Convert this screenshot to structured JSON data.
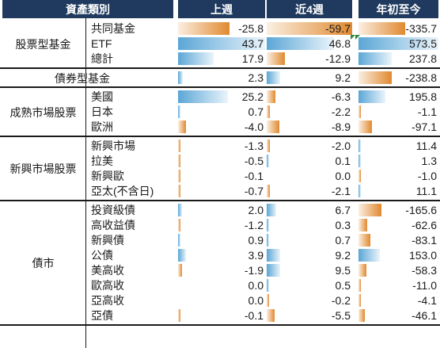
{
  "chart_data": {
    "type": "table",
    "headers": [
      "資產類別",
      "上週",
      "近4週",
      "年初至今"
    ],
    "groups": [
      {
        "category": "股票型基金",
        "rows": [
          {
            "label": "共同基金",
            "values": [
              -25.8,
              -59.7,
              -335.7
            ]
          },
          {
            "label": "ETF",
            "values": [
              43.7,
              46.8,
              573.5
            ]
          },
          {
            "label": "總計",
            "values": [
              17.9,
              -12.9,
              237.8
            ]
          }
        ]
      },
      {
        "category": "債券型基金",
        "rows": [
          {
            "label": "",
            "values": [
              2.3,
              9.2,
              -238.8
            ]
          }
        ]
      },
      {
        "category": "成熟市場股票",
        "rows": [
          {
            "label": "美國",
            "values": [
              25.2,
              -6.3,
              195.8
            ]
          },
          {
            "label": "日本",
            "values": [
              0.7,
              -2.2,
              -1.1
            ]
          },
          {
            "label": "歐洲",
            "values": [
              -4.0,
              -8.9,
              -97.1
            ]
          }
        ]
      },
      {
        "category": "新興市場股票",
        "rows": [
          {
            "label": "新興市場",
            "values": [
              -1.3,
              -2.0,
              11.4
            ]
          },
          {
            "label": "拉美",
            "values": [
              -0.5,
              0.1,
              1.3
            ]
          },
          {
            "label": "新興歐",
            "values": [
              -0.1,
              0.0,
              -1.0
            ]
          },
          {
            "label": "亞太(不含日)",
            "values": [
              -0.7,
              -2.1,
              11.1
            ]
          }
        ]
      },
      {
        "category": "債市",
        "rows": [
          {
            "label": "投資級債",
            "values": [
              2.0,
              6.7,
              -165.6
            ]
          },
          {
            "label": "高收益債",
            "values": [
              -1.2,
              0.3,
              -62.6
            ]
          },
          {
            "label": "新興債",
            "values": [
              0.9,
              0.7,
              -83.1
            ]
          },
          {
            "label": "公債",
            "values": [
              3.9,
              9.2,
              153.0
            ]
          },
          {
            "label": "美高收",
            "values": [
              -1.9,
              9.5,
              -58.3
            ]
          },
          {
            "label": "歐高收",
            "values": [
              0.0,
              0.5,
              -11.0
            ]
          },
          {
            "label": "亞高收",
            "values": [
              0.0,
              -0.2,
              -4.1
            ]
          },
          {
            "label": "亞債",
            "values": [
              -0.1,
              -5.5,
              -46.1
            ]
          }
        ]
      }
    ],
    "colors": {
      "positive": "#5ba6d6",
      "negative": "#e0892f",
      "header_bg": "#1f3a5e",
      "header_text": "#ffffff",
      "flag": "#2e8b3a"
    }
  }
}
